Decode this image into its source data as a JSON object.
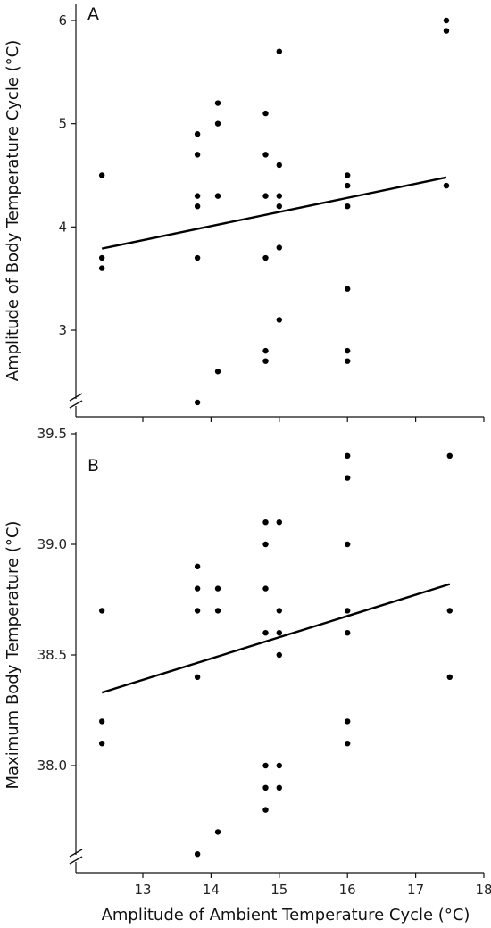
{
  "chart_data": [
    {
      "type": "scatter",
      "panel_label": "A",
      "ylabel": "Amplitude of Body Temperature Cycle (°C)",
      "xlabel": "",
      "xlim": [
        12.2,
        18
      ],
      "ylim": [
        2.1,
        6.2
      ],
      "yticks": [
        3,
        4,
        5,
        6
      ],
      "ytick_labels": [
        "3",
        "4",
        "5",
        "6"
      ],
      "grid": false,
      "axis_break": "bottom-left",
      "trendline": {
        "x": [
          12.4,
          17.45
        ],
        "y": [
          3.79,
          4.48
        ]
      },
      "points": [
        {
          "x": 12.4,
          "y": 4.5
        },
        {
          "x": 12.4,
          "y": 3.7
        },
        {
          "x": 12.4,
          "y": 3.6
        },
        {
          "x": 13.8,
          "y": 4.9
        },
        {
          "x": 13.8,
          "y": 4.7
        },
        {
          "x": 13.8,
          "y": 4.3
        },
        {
          "x": 13.8,
          "y": 4.2
        },
        {
          "x": 13.8,
          "y": 3.7
        },
        {
          "x": 13.8,
          "y": 2.3
        },
        {
          "x": 14.1,
          "y": 5.2
        },
        {
          "x": 14.1,
          "y": 5.0
        },
        {
          "x": 14.1,
          "y": 4.3
        },
        {
          "x": 14.1,
          "y": 2.6
        },
        {
          "x": 14.8,
          "y": 5.1
        },
        {
          "x": 14.8,
          "y": 4.7
        },
        {
          "x": 14.8,
          "y": 4.3
        },
        {
          "x": 14.8,
          "y": 3.7
        },
        {
          "x": 14.8,
          "y": 2.8
        },
        {
          "x": 14.8,
          "y": 2.7
        },
        {
          "x": 15.0,
          "y": 5.7
        },
        {
          "x": 15.0,
          "y": 4.6
        },
        {
          "x": 15.0,
          "y": 4.3
        },
        {
          "x": 15.0,
          "y": 4.2
        },
        {
          "x": 15.0,
          "y": 3.8
        },
        {
          "x": 15.0,
          "y": 3.1
        },
        {
          "x": 16.0,
          "y": 4.5
        },
        {
          "x": 16.0,
          "y": 4.4
        },
        {
          "x": 16.0,
          "y": 4.2
        },
        {
          "x": 16.0,
          "y": 3.4
        },
        {
          "x": 16.0,
          "y": 2.8
        },
        {
          "x": 16.0,
          "y": 2.7
        },
        {
          "x": 17.45,
          "y": 6.0
        },
        {
          "x": 17.45,
          "y": 5.9
        },
        {
          "x": 17.45,
          "y": 4.4
        }
      ]
    },
    {
      "type": "scatter",
      "panel_label": "B",
      "ylabel": "Maximum Body Temperature (°C)",
      "xlabel": "Amplitude of Ambient Temperature Cycle (°C)",
      "xlim": [
        12.2,
        18
      ],
      "ylim": [
        37.55,
        39.55
      ],
      "xticks": [
        13,
        14,
        15,
        16,
        17,
        18
      ],
      "xtick_labels": [
        "13",
        "14",
        "15",
        "16",
        "17",
        "18"
      ],
      "yticks": [
        38.0,
        38.5,
        39.0,
        39.5
      ],
      "ytick_labels": [
        "38.0",
        "38.5",
        "39.0",
        "39.5"
      ],
      "grid": false,
      "axis_break": "bottom-left",
      "trendline": {
        "x": [
          12.4,
          17.5
        ],
        "y": [
          38.33,
          38.82
        ]
      },
      "points": [
        {
          "x": 12.4,
          "y": 38.7
        },
        {
          "x": 12.4,
          "y": 38.2
        },
        {
          "x": 12.4,
          "y": 38.1
        },
        {
          "x": 13.8,
          "y": 38.9
        },
        {
          "x": 13.8,
          "y": 38.8
        },
        {
          "x": 13.8,
          "y": 38.7
        },
        {
          "x": 13.8,
          "y": 38.4
        },
        {
          "x": 13.8,
          "y": 37.6
        },
        {
          "x": 14.1,
          "y": 38.8
        },
        {
          "x": 14.1,
          "y": 38.7
        },
        {
          "x": 14.1,
          "y": 37.7
        },
        {
          "x": 14.8,
          "y": 39.1
        },
        {
          "x": 14.8,
          "y": 39.0
        },
        {
          "x": 14.8,
          "y": 38.8
        },
        {
          "x": 14.8,
          "y": 38.6
        },
        {
          "x": 14.8,
          "y": 38.0
        },
        {
          "x": 14.8,
          "y": 37.9
        },
        {
          "x": 14.8,
          "y": 37.8
        },
        {
          "x": 15.0,
          "y": 39.1
        },
        {
          "x": 15.0,
          "y": 38.7
        },
        {
          "x": 15.0,
          "y": 38.6
        },
        {
          "x": 15.0,
          "y": 38.5
        },
        {
          "x": 15.0,
          "y": 38.0
        },
        {
          "x": 15.0,
          "y": 37.9
        },
        {
          "x": 16.0,
          "y": 39.4
        },
        {
          "x": 16.0,
          "y": 39.3
        },
        {
          "x": 16.0,
          "y": 39.0
        },
        {
          "x": 16.0,
          "y": 38.7
        },
        {
          "x": 16.0,
          "y": 38.6
        },
        {
          "x": 16.0,
          "y": 38.2
        },
        {
          "x": 16.0,
          "y": 38.1
        },
        {
          "x": 17.5,
          "y": 39.4
        },
        {
          "x": 17.5,
          "y": 38.7
        },
        {
          "x": 17.5,
          "y": 38.4
        }
      ]
    }
  ]
}
